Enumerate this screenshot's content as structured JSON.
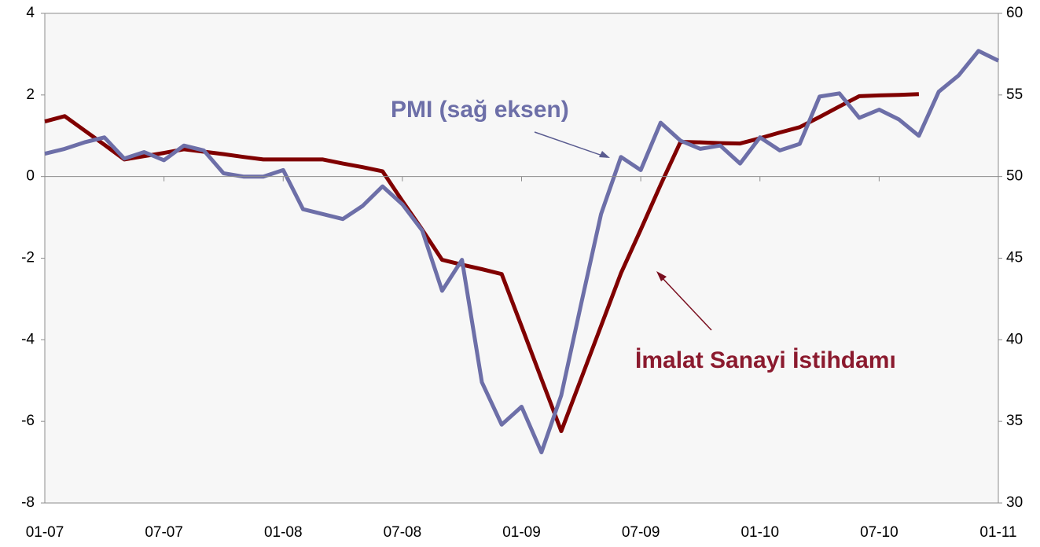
{
  "chart_data": {
    "type": "line",
    "categories": [
      "01-07",
      null,
      null,
      null,
      null,
      null,
      "07-07",
      null,
      null,
      null,
      null,
      null,
      "01-08",
      null,
      null,
      null,
      null,
      null,
      "07-08",
      null,
      null,
      null,
      null,
      null,
      "01-09",
      null,
      null,
      null,
      null,
      null,
      "07-09",
      null,
      null,
      null,
      null,
      null,
      "01-10",
      null,
      null,
      null,
      null,
      null,
      "07-10",
      null,
      null,
      null,
      null,
      null,
      "01-11"
    ],
    "series": [
      {
        "color": "#800000",
        "axis": "y",
        "values": [
          1.35,
          1.48,
          1.13,
          0.78,
          0.42,
          0.5,
          0.58,
          0.67,
          0.61,
          0.55,
          0.48,
          0.42,
          0.42,
          0.42,
          0.42,
          0.32,
          0.23,
          0.13,
          -0.6,
          -1.3,
          -2.04,
          -2.16,
          -2.27,
          -2.39,
          -3.67,
          -4.96,
          -6.24,
          -4.95,
          -3.66,
          -2.37,
          -1.3,
          -0.2,
          0.85,
          0.84,
          0.82,
          0.81,
          0.94,
          1.08,
          1.21,
          1.46,
          1.72,
          1.97,
          1.99,
          2.0,
          2.02,
          null,
          null,
          null,
          null
        ]
      },
      {
        "color": "#6d6fa8",
        "axis": "y2",
        "values": [
          51.4,
          51.7,
          52.1,
          52.4,
          51.1,
          51.5,
          51.0,
          51.9,
          51.6,
          50.2,
          50.0,
          50.0,
          50.4,
          48.0,
          47.7,
          47.4,
          48.2,
          49.4,
          48.3,
          46.7,
          43.0,
          44.9,
          37.4,
          34.8,
          35.9,
          33.1,
          36.6,
          42.2,
          47.7,
          51.2,
          50.4,
          53.3,
          52.2,
          51.7,
          51.9,
          50.8,
          52.4,
          51.6,
          52.0,
          54.9,
          55.1,
          53.6,
          54.1,
          53.5,
          52.5,
          55.2,
          56.2,
          57.7,
          57.1
        ]
      }
    ],
    "ylim": [
      -8,
      4
    ],
    "yticks": [
      -8,
      -6,
      -4,
      -2,
      0,
      2,
      4
    ],
    "y2lim": [
      30,
      60
    ],
    "y2ticks": [
      30,
      35,
      40,
      45,
      50,
      55,
      60
    ],
    "annotations": [
      "PMI (sağ eksen)",
      "İmalat Sanayi İstihdamı"
    ]
  }
}
